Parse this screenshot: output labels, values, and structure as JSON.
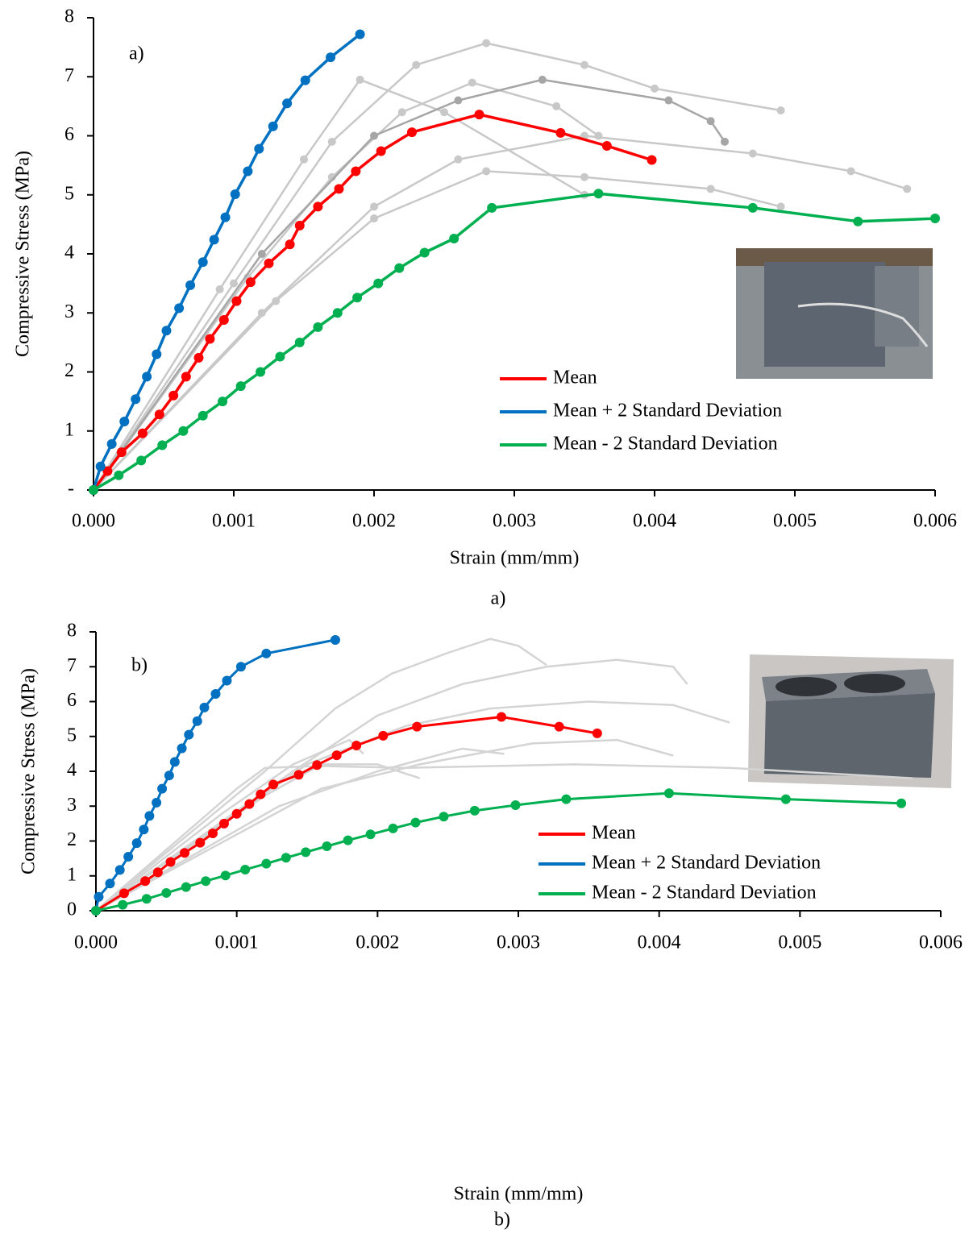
{
  "chart_data": [
    {
      "type": "line",
      "panel_label": "a)",
      "caption": "a)",
      "x_label": "Strain (mm/mm)",
      "y_label": "Compressive Stress (MPa)",
      "xlim": [
        0,
        0.006
      ],
      "ylim": [
        0,
        8
      ],
      "xticks": [
        {
          "value": 0,
          "label": "0.000"
        },
        {
          "value": 0.001,
          "label": "0.001"
        },
        {
          "value": 0.002,
          "label": "0.002"
        },
        {
          "value": 0.003,
          "label": "0.003"
        },
        {
          "value": 0.004,
          "label": "0.004"
        },
        {
          "value": 0.005,
          "label": "0.005"
        },
        {
          "value": 0.006,
          "label": "0.006"
        }
      ],
      "yticks": [
        {
          "value": 0,
          "label": "-"
        },
        1,
        2,
        3,
        4,
        5,
        6,
        7,
        8
      ],
      "series": [
        {
          "color": "#c8c8c8",
          "markers": true,
          "x": [
            0,
            0.001,
            0.0017,
            0.0023,
            0.0028,
            0.0035,
            0.004,
            0.0049
          ],
          "values": [
            0,
            3.5,
            5.9,
            7.2,
            7.57,
            7.2,
            6.8,
            6.43
          ]
        },
        {
          "color": "#c8c8c8",
          "markers": true,
          "x": [
            0,
            0.0012,
            0.002,
            0.0026,
            0.0035,
            0.0047,
            0.0054,
            0.0058
          ],
          "values": [
            0,
            3.0,
            4.8,
            5.6,
            6.0,
            5.7,
            5.4,
            5.1
          ]
        },
        {
          "color": "#c8c8c8",
          "markers": true,
          "x": [
            0,
            0.0013,
            0.002,
            0.0028,
            0.0035,
            0.0044,
            0.0049
          ],
          "values": [
            0,
            3.2,
            4.6,
            5.4,
            5.3,
            5.1,
            4.8
          ]
        },
        {
          "color": "#c8c8c8",
          "markers": true,
          "x": [
            0,
            0.0009,
            0.0015,
            0.0019,
            0.0025,
            0.0035
          ],
          "values": [
            0,
            3.4,
            5.6,
            6.95,
            6.4,
            5.0
          ]
        },
        {
          "color": "#c8c8c8",
          "markers": true,
          "x": [
            0,
            0.0011,
            0.0017,
            0.0022,
            0.0027,
            0.0033,
            0.0036
          ],
          "values": [
            0,
            3.6,
            5.3,
            6.4,
            6.9,
            6.5,
            6.0
          ]
        },
        {
          "color": "#a6a6a6",
          "markers": true,
          "x": [
            0,
            0.0012,
            0.002,
            0.0026,
            0.0032,
            0.0041,
            0.0044,
            0.0045
          ],
          "values": [
            0,
            4.0,
            6.0,
            6.6,
            6.95,
            6.6,
            6.25,
            5.9
          ]
        },
        {
          "name": "Mean",
          "color": "#ff0000",
          "markers": true,
          "x": [
            0,
            0.0001,
            0.0002,
            0.00035,
            0.00047,
            0.00057,
            0.00066,
            0.00075,
            0.00083,
            0.00093,
            0.00102,
            0.00112,
            0.00125,
            0.0014,
            0.00147,
            0.0016,
            0.00175,
            0.00187,
            0.00205,
            0.00227,
            0.00275,
            0.00333,
            0.00366,
            0.00398
          ],
          "values": [
            0,
            0.32,
            0.64,
            0.96,
            1.28,
            1.6,
            1.92,
            2.24,
            2.56,
            2.88,
            3.2,
            3.52,
            3.84,
            4.16,
            4.48,
            4.8,
            5.1,
            5.4,
            5.74,
            6.06,
            6.36,
            6.05,
            5.83,
            5.59
          ]
        },
        {
          "name": "Mean + 2 Standard Deviation",
          "color": "#0070c0",
          "markers": true,
          "x": [
            0,
            5e-05,
            0.00013,
            0.00022,
            0.0003,
            0.00038,
            0.00045,
            0.00052,
            0.00061,
            0.00069,
            0.00078,
            0.00086,
            0.00094,
            0.00101,
            0.0011,
            0.00118,
            0.00128,
            0.00138,
            0.00151,
            0.00169,
            0.0019
          ],
          "values": [
            0,
            0.4,
            0.78,
            1.16,
            1.54,
            1.92,
            2.3,
            2.7,
            3.08,
            3.47,
            3.86,
            4.24,
            4.62,
            5.01,
            5.4,
            5.78,
            6.16,
            6.55,
            6.94,
            7.33,
            7.72
          ]
        },
        {
          "name": "Mean - 2 Standard Deviation",
          "color": "#00b050",
          "markers": true,
          "x": [
            0,
            0.00018,
            0.00034,
            0.00049,
            0.00064,
            0.00078,
            0.00092,
            0.00105,
            0.00119,
            0.00133,
            0.00147,
            0.0016,
            0.00174,
            0.00188,
            0.00203,
            0.00218,
            0.00236,
            0.00257,
            0.00284,
            0.0036,
            0.0047,
            0.00545,
            0.006
          ],
          "values": [
            0,
            0.25,
            0.5,
            0.76,
            1.0,
            1.26,
            1.5,
            1.76,
            2.0,
            2.26,
            2.5,
            2.76,
            3.0,
            3.26,
            3.5,
            3.76,
            4.02,
            4.26,
            4.78,
            5.02,
            4.78,
            4.55,
            4.6
          ]
        }
      ]
    },
    {
      "type": "line",
      "panel_label": "b)",
      "caption": "b)",
      "x_label": "Strain (mm/mm)",
      "y_label": "Compressive Stress (MPa)",
      "xlim": [
        0,
        0.006
      ],
      "ylim": [
        0,
        8
      ],
      "xticks": [
        {
          "value": 0,
          "label": "0.000"
        },
        {
          "value": 0.001,
          "label": "0.001"
        },
        {
          "value": 0.002,
          "label": "0.002"
        },
        {
          "value": 0.003,
          "label": "0.003"
        },
        {
          "value": 0.004,
          "label": "0.004"
        },
        {
          "value": 0.005,
          "label": "0.005"
        },
        {
          "value": 0.006,
          "label": "0.006"
        }
      ],
      "yticks": [
        0,
        1,
        2,
        3,
        4,
        5,
        6,
        7,
        8
      ],
      "series": [
        {
          "color": "#d4d4d4",
          "markers": false,
          "x": [
            0,
            0.0012,
            0.0017,
            0.0021,
            0.0025,
            0.0028,
            0.003,
            0.0032
          ],
          "values": [
            0,
            4.0,
            5.8,
            6.8,
            7.4,
            7.8,
            7.6,
            7.05
          ]
        },
        {
          "color": "#d4d4d4",
          "markers": false,
          "x": [
            0,
            0.0014,
            0.002,
            0.0026,
            0.0032,
            0.0037,
            0.0041,
            0.0042
          ],
          "values": [
            0,
            4.0,
            5.6,
            6.5,
            7.0,
            7.2,
            7.0,
            6.5
          ]
        },
        {
          "color": "#d4d4d4",
          "markers": false,
          "x": [
            0,
            0.0015,
            0.0022,
            0.0028,
            0.0035,
            0.0041,
            0.0045
          ],
          "values": [
            0,
            4.2,
            5.3,
            5.8,
            6.0,
            5.9,
            5.4
          ]
        },
        {
          "color": "#d4d4d4",
          "markers": false,
          "x": [
            0,
            0.001,
            0.0012,
            0.0016,
            0.0022,
            0.0034,
            0.0045,
            0.0058
          ],
          "values": [
            0,
            3.5,
            4.1,
            4.15,
            4.1,
            4.2,
            4.1,
            3.8
          ]
        },
        {
          "color": "#d4d4d4",
          "markers": false,
          "x": [
            0,
            0.0009,
            0.0014,
            0.0018,
            0.0019
          ],
          "values": [
            0,
            2.8,
            4.2,
            4.9,
            4.5
          ]
        },
        {
          "color": "#d4d4d4",
          "markers": false,
          "x": [
            0,
            0.0013,
            0.002,
            0.0026,
            0.0029
          ],
          "values": [
            0,
            3.0,
            4.0,
            4.65,
            4.5
          ]
        },
        {
          "color": "#d4d4d4",
          "markers": false,
          "x": [
            0,
            0.0016,
            0.0023,
            0.0031,
            0.0037,
            0.0041
          ],
          "values": [
            0,
            3.5,
            4.2,
            4.8,
            4.9,
            4.45
          ]
        },
        {
          "color": "#d4d4d4",
          "markers": false,
          "x": [
            0,
            0.0012,
            0.0016,
            0.002,
            0.0023
          ],
          "values": [
            0,
            3.3,
            4.2,
            4.2,
            3.8
          ]
        },
        {
          "name": "Mean",
          "color": "#ff0000",
          "markers": true,
          "x": [
            0,
            0.0002,
            0.00035,
            0.00044,
            0.00053,
            0.00063,
            0.00074,
            0.00083,
            0.00091,
            0.001,
            0.00109,
            0.00117,
            0.00126,
            0.00144,
            0.00157,
            0.00171,
            0.00185,
            0.00204,
            0.00228,
            0.00288,
            0.00329,
            0.00356
          ],
          "values": [
            0,
            0.5,
            0.85,
            1.1,
            1.4,
            1.66,
            1.95,
            2.22,
            2.5,
            2.78,
            3.06,
            3.34,
            3.62,
            3.9,
            4.18,
            4.46,
            4.74,
            5.02,
            5.28,
            5.56,
            5.28,
            5.09
          ]
        },
        {
          "name": "Mean + 2 Standard Deviation",
          "color": "#0070c0",
          "markers": true,
          "x": [
            0,
            2e-05,
            0.0001,
            0.00017,
            0.00023,
            0.00029,
            0.00034,
            0.00038,
            0.00043,
            0.00047,
            0.00052,
            0.00056,
            0.00061,
            0.00066,
            0.00072,
            0.00077,
            0.00085,
            0.00093,
            0.00103,
            0.00121,
            0.0017
          ],
          "values": [
            0,
            0.4,
            0.78,
            1.17,
            1.55,
            1.94,
            2.33,
            2.72,
            3.1,
            3.5,
            3.88,
            4.27,
            4.66,
            5.05,
            5.44,
            5.83,
            6.22,
            6.6,
            7.0,
            7.38,
            7.77
          ]
        },
        {
          "name": "Mean - 2 Standard Deviation",
          "color": "#00b050",
          "markers": true,
          "x": [
            0,
            0.00019,
            0.00036,
            0.0005,
            0.00064,
            0.00078,
            0.00092,
            0.00106,
            0.00121,
            0.00135,
            0.00149,
            0.00164,
            0.00179,
            0.00195,
            0.00211,
            0.00227,
            0.00247,
            0.00269,
            0.00298,
            0.00334,
            0.00407,
            0.0049,
            0.00572
          ],
          "values": [
            0,
            0.17,
            0.34,
            0.51,
            0.68,
            0.85,
            1.01,
            1.18,
            1.35,
            1.52,
            1.68,
            1.85,
            2.02,
            2.19,
            2.36,
            2.53,
            2.7,
            2.87,
            3.03,
            3.2,
            3.37,
            3.2,
            3.08
          ]
        }
      ]
    }
  ]
}
